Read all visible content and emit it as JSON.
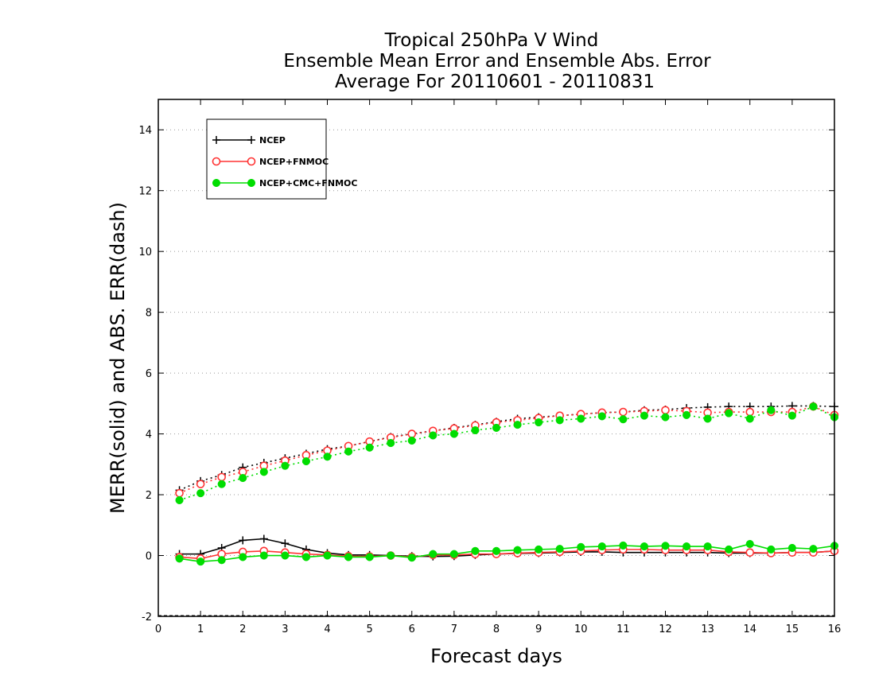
{
  "chart_data": {
    "type": "line",
    "title_lines": [
      "Tropical 250hPa V Wind",
      "Ensemble Mean Error and Ensemble Abs. Error",
      "Average For 20110601 - 20110831"
    ],
    "xlabel": "Forecast days",
    "ylabel": "MERR(solid) and ABS. ERR(dash)",
    "xlim": [
      0,
      16
    ],
    "ylim": [
      -2,
      15
    ],
    "xticks": [
      "0",
      "1",
      "2",
      "3",
      "4",
      "5",
      "6",
      "7",
      "8",
      "9",
      "10",
      "11",
      "12",
      "13",
      "14",
      "15",
      "16"
    ],
    "yticks": [
      "-2",
      "0",
      "2",
      "4",
      "6",
      "8",
      "10",
      "12",
      "14"
    ],
    "grid": "horizontal dotted",
    "legend_position": "top-left",
    "x": [
      0.5,
      1,
      1.5,
      2,
      2.5,
      3,
      3.5,
      4,
      4.5,
      5,
      5.5,
      6,
      6.5,
      7,
      7.5,
      8,
      8.5,
      9,
      9.5,
      10,
      10.5,
      11,
      11.5,
      12,
      12.5,
      13,
      13.5,
      14,
      14.5,
      15,
      15.5,
      16
    ],
    "series": [
      {
        "name": "NCEP",
        "color": "#000000",
        "marker": "plus",
        "merr": [
          0.05,
          0.05,
          0.25,
          0.5,
          0.55,
          0.4,
          0.2,
          0.08,
          0.02,
          0.02,
          0.0,
          -0.02,
          -0.03,
          -0.02,
          0.02,
          0.05,
          0.07,
          0.08,
          0.1,
          0.12,
          0.12,
          0.1,
          0.1,
          0.1,
          0.1,
          0.1,
          0.08,
          0.08,
          0.08,
          0.1,
          0.1,
          0.15
        ],
        "abs_err": [
          2.15,
          2.45,
          2.65,
          2.9,
          3.05,
          3.2,
          3.35,
          3.5,
          3.6,
          3.75,
          3.9,
          4.0,
          4.1,
          4.2,
          4.3,
          4.4,
          4.5,
          4.55,
          4.6,
          4.65,
          4.7,
          4.72,
          4.78,
          4.8,
          4.85,
          4.88,
          4.9,
          4.9,
          4.9,
          4.92,
          4.92,
          4.9
        ]
      },
      {
        "name": "NCEP+FNMOC",
        "color": "#ff3333",
        "marker": "open-circle",
        "merr": [
          -0.05,
          -0.1,
          0.05,
          0.12,
          0.15,
          0.1,
          0.05,
          0.02,
          -0.02,
          -0.03,
          0.0,
          -0.05,
          0.02,
          0.02,
          0.05,
          0.05,
          0.08,
          0.1,
          0.12,
          0.15,
          0.18,
          0.2,
          0.2,
          0.18,
          0.18,
          0.18,
          0.12,
          0.1,
          0.08,
          0.1,
          0.1,
          0.15
        ],
        "abs_err": [
          2.05,
          2.35,
          2.58,
          2.75,
          2.95,
          3.12,
          3.3,
          3.45,
          3.6,
          3.75,
          3.88,
          4.0,
          4.1,
          4.18,
          4.28,
          4.38,
          4.45,
          4.52,
          4.6,
          4.65,
          4.7,
          4.72,
          4.75,
          4.78,
          4.75,
          4.7,
          4.72,
          4.72,
          4.72,
          4.72,
          4.9,
          4.62
        ]
      },
      {
        "name": "NCEP+CMC+FNMOC",
        "color": "#00dd00",
        "marker": "filled-circle",
        "merr": [
          -0.1,
          -0.2,
          -0.15,
          -0.05,
          0.0,
          0.0,
          -0.05,
          0.0,
          -0.05,
          -0.05,
          0.0,
          -0.07,
          0.05,
          0.05,
          0.15,
          0.15,
          0.18,
          0.2,
          0.22,
          0.28,
          0.3,
          0.33,
          0.3,
          0.32,
          0.3,
          0.3,
          0.2,
          0.38,
          0.2,
          0.25,
          0.22,
          0.32
        ],
        "abs_err": [
          1.82,
          2.05,
          2.35,
          2.55,
          2.75,
          2.95,
          3.1,
          3.25,
          3.42,
          3.55,
          3.7,
          3.78,
          3.95,
          4.0,
          4.12,
          4.2,
          4.3,
          4.38,
          4.45,
          4.5,
          4.58,
          4.48,
          4.6,
          4.55,
          4.62,
          4.5,
          4.68,
          4.5,
          4.78,
          4.6,
          4.9,
          4.55
        ]
      }
    ]
  }
}
